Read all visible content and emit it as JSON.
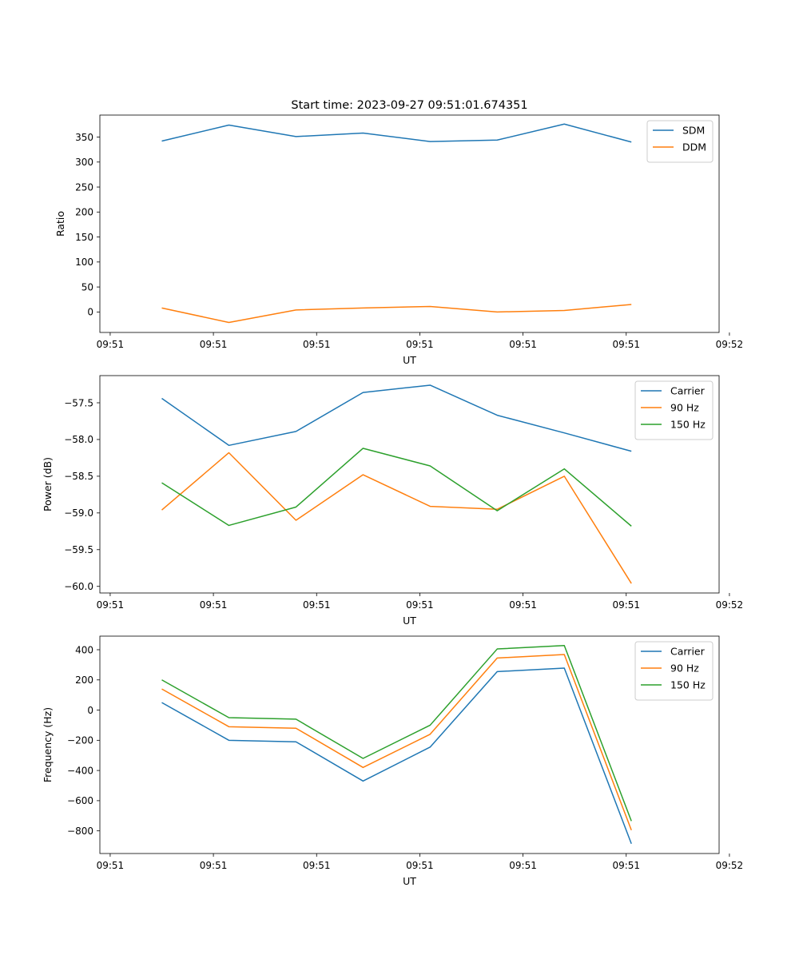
{
  "figure": {
    "title": "Start time: 2023-09-27 09:51:01.674351"
  },
  "chart_data": [
    {
      "type": "line",
      "title": "Start time: 2023-09-27 09:51:01.674351",
      "xlabel": "UT",
      "ylabel": "Ratio",
      "x": [
        0.5,
        1.15,
        1.8,
        2.45,
        3.1,
        3.75,
        4.4,
        5.05
      ],
      "xlim": [
        -0.1,
        5.9
      ],
      "xticks": [
        0,
        1,
        2,
        3,
        4,
        5,
        6
      ],
      "xticklabels": [
        "09:51",
        "09:51",
        "09:51",
        "09:51",
        "09:51",
        "09:51",
        "09:52"
      ],
      "ylim": [
        -41,
        394
      ],
      "yticks": [
        0,
        50,
        100,
        150,
        200,
        250,
        300,
        350
      ],
      "yticklabels": [
        "0",
        "50",
        "100",
        "150",
        "200",
        "250",
        "300",
        "350"
      ],
      "legend": "top-right",
      "series": [
        {
          "name": "SDM",
          "color": "#1f77b4",
          "values": [
            342,
            374,
            351,
            358,
            341,
            344,
            376,
            340
          ]
        },
        {
          "name": "DDM",
          "color": "#ff7f0e",
          "values": [
            8,
            -21,
            4,
            8,
            11,
            0,
            3,
            15
          ]
        }
      ]
    },
    {
      "type": "line",
      "title": "",
      "xlabel": "UT",
      "ylabel": "Power (dB)",
      "x": [
        0.5,
        1.15,
        1.8,
        2.45,
        3.1,
        3.75,
        4.4,
        5.05
      ],
      "xlim": [
        -0.1,
        5.9
      ],
      "xticks": [
        0,
        1,
        2,
        3,
        4,
        5,
        6
      ],
      "xticklabels": [
        "09:51",
        "09:51",
        "09:51",
        "09:51",
        "09:51",
        "09:51",
        "09:52"
      ],
      "ylim": [
        -60.09,
        -57.13
      ],
      "yticks": [
        -60.0,
        -59.5,
        -59.0,
        -58.5,
        -58.0,
        -57.5
      ],
      "yticklabels": [
        "−60.0",
        "−59.5",
        "−59.0",
        "−58.5",
        "−58.0",
        "−57.5"
      ],
      "legend": "top-right",
      "series": [
        {
          "name": "Carrier",
          "color": "#1f77b4",
          "values": [
            -57.44,
            -58.08,
            -57.89,
            -57.36,
            -57.26,
            -57.67,
            -57.91,
            -58.16
          ]
        },
        {
          "name": "90 Hz",
          "color": "#ff7f0e",
          "values": [
            -58.96,
            -58.18,
            -59.1,
            -58.48,
            -58.91,
            -58.95,
            -58.5,
            -59.96
          ]
        },
        {
          "name": "150 Hz",
          "color": "#2ca02c",
          "values": [
            -58.59,
            -59.17,
            -58.92,
            -58.12,
            -58.36,
            -58.97,
            -58.4,
            -59.18
          ]
        }
      ]
    },
    {
      "type": "line",
      "title": "",
      "xlabel": "UT",
      "ylabel": "Frequency (Hz)",
      "x": [
        0.5,
        1.15,
        1.8,
        2.45,
        3.1,
        3.75,
        4.4,
        5.05
      ],
      "xlim": [
        -0.1,
        5.9
      ],
      "xticks": [
        0,
        1,
        2,
        3,
        4,
        5,
        6
      ],
      "xticklabels": [
        "09:51",
        "09:51",
        "09:51",
        "09:51",
        "09:51",
        "09:51",
        "09:52"
      ],
      "ylim": [
        -950,
        490
      ],
      "yticks": [
        -800,
        -600,
        -400,
        -200,
        0,
        200,
        400
      ],
      "yticklabels": [
        "−800",
        "−600",
        "−400",
        "−200",
        "0",
        "200",
        "400"
      ],
      "legend": "top-right",
      "series": [
        {
          "name": "Carrier",
          "color": "#1f77b4",
          "values": [
            50,
            -200,
            -210,
            -470,
            -245,
            255,
            278,
            -885
          ]
        },
        {
          "name": "90 Hz",
          "color": "#ff7f0e",
          "values": [
            140,
            -110,
            -120,
            -380,
            -160,
            345,
            368,
            -795
          ]
        },
        {
          "name": "150 Hz",
          "color": "#2ca02c",
          "values": [
            200,
            -50,
            -60,
            -320,
            -100,
            405,
            428,
            -735
          ]
        }
      ]
    }
  ]
}
